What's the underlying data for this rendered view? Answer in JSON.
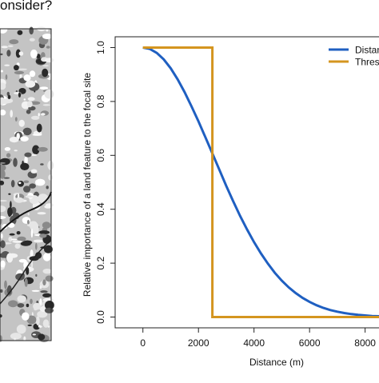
{
  "header": {
    "title_fragment": "onsider?"
  },
  "chart_data": {
    "type": "line",
    "xlabel": "Distance (m)",
    "ylabel": "Relative importance of a land feature to the focal site",
    "xlim": [
      -1000,
      8500
    ],
    "ylim": [
      -0.04,
      1.04
    ],
    "x_ticks": [
      0,
      2000,
      4000,
      6000,
      8000
    ],
    "x_tick_labels": [
      "0",
      "2000",
      "4000",
      "6000",
      "8000"
    ],
    "y_ticks": [
      0.0,
      0.2,
      0.4,
      0.6,
      0.8,
      1.0
    ],
    "y_tick_labels": [
      "0.0",
      "0.2",
      "0.4",
      "0.6",
      "0.8",
      "1.0"
    ],
    "legend": {
      "position": "top-right",
      "entries": [
        "Distan",
        "Thres"
      ]
    },
    "series": [
      {
        "name": "Distan",
        "color": "#1f5fc1",
        "x": [
          0,
          250,
          500,
          750,
          1000,
          1250,
          1500,
          1750,
          2000,
          2250,
          2500,
          2750,
          3000,
          3250,
          3500,
          3750,
          4000,
          4250,
          4500,
          4750,
          5000,
          5250,
          5500,
          5750,
          6000,
          6250,
          6500,
          6750,
          7000,
          7250,
          7500,
          7750,
          8000,
          8250,
          8500
        ],
        "y": [
          1.0,
          0.995,
          0.98,
          0.956,
          0.923,
          0.882,
          0.835,
          0.782,
          0.726,
          0.667,
          0.607,
          0.547,
          0.487,
          0.43,
          0.375,
          0.325,
          0.278,
          0.236,
          0.198,
          0.164,
          0.135,
          0.11,
          0.089,
          0.071,
          0.056,
          0.044,
          0.034,
          0.026,
          0.02,
          0.015,
          0.011,
          0.008,
          0.006,
          0.004,
          0.003
        ]
      },
      {
        "name": "Thres",
        "color": "#d4951f",
        "x": [
          0,
          2500,
          2500,
          8500
        ],
        "y": [
          1.0,
          1.0,
          0.0,
          0.0
        ]
      }
    ]
  }
}
